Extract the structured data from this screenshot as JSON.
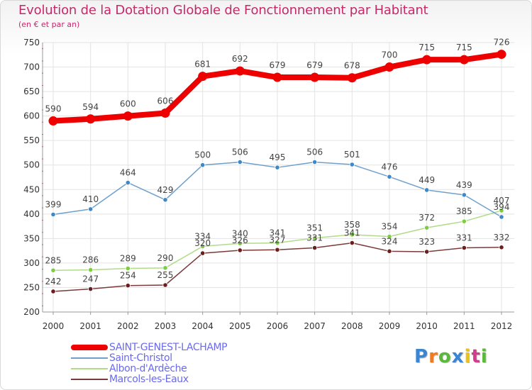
{
  "title": "Evolution de la Dotation Globale de Fonctionnement par Habitant",
  "subtitle": "(en € et par an)",
  "logo_text": "Proxiti",
  "chart_data": {
    "type": "line",
    "title": "Evolution de la Dotation Globale de Fonctionnement par Habitant",
    "subtitle": "(en € et par an)",
    "xlabel": "",
    "ylabel": "",
    "categories": [
      "2000",
      "2001",
      "2002",
      "2003",
      "2004",
      "2005",
      "2006",
      "2007",
      "2008",
      "2009",
      "2010",
      "2011",
      "2012"
    ],
    "ylim": [
      200,
      750
    ],
    "yticks": [
      200,
      250,
      300,
      350,
      400,
      450,
      500,
      550,
      600,
      650,
      700,
      750
    ],
    "grid": true,
    "legend_position": "bottom-left",
    "series": [
      {
        "name": "SAINT-GENEST-LACHAMP",
        "color": "#ee0000",
        "marker": "#ee0000",
        "emphasis": true,
        "values": [
          590,
          594,
          600,
          606,
          681,
          692,
          679,
          679,
          678,
          700,
          715,
          715,
          726
        ]
      },
      {
        "name": "Saint-Christol",
        "color": "#6fa0cc",
        "marker": "#3f88c8",
        "values": [
          399,
          410,
          464,
          429,
          500,
          506,
          495,
          506,
          501,
          476,
          449,
          439,
          394
        ]
      },
      {
        "name": "Albon-d'Ardèche",
        "color": "#b0dc8a",
        "marker": "#7ccd3f",
        "values": [
          285,
          286,
          289,
          290,
          334,
          340,
          341,
          351,
          358,
          354,
          372,
          385,
          407
        ]
      },
      {
        "name": "Marcols-les-Eaux",
        "color": "#7a3a3a",
        "marker": "#6b1e1e",
        "values": [
          242,
          247,
          254,
          255,
          320,
          326,
          327,
          331,
          341,
          324,
          323,
          331,
          332
        ]
      }
    ]
  }
}
